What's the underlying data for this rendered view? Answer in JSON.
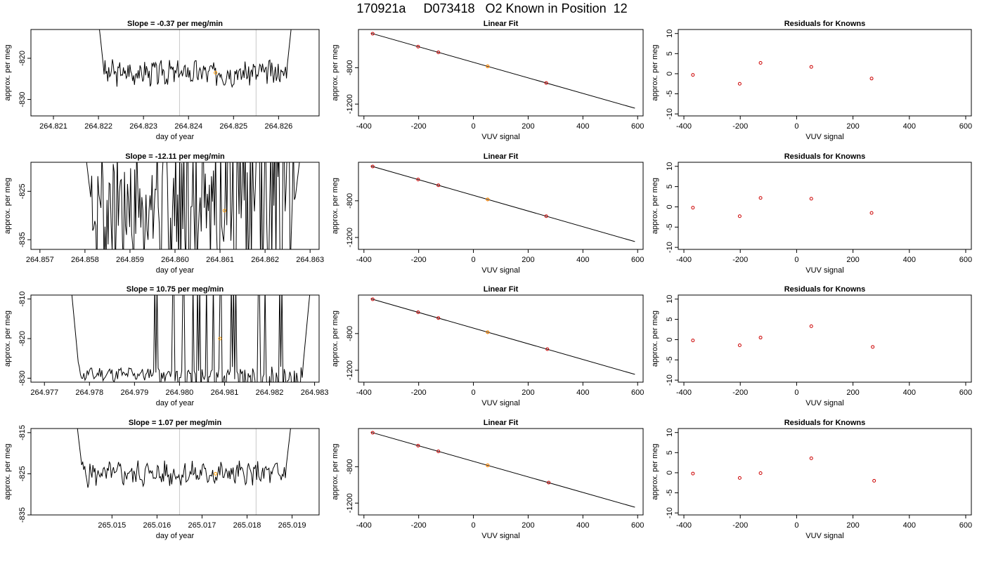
{
  "figure": {
    "title": "170921a     D073418   O2 Known in Position  12"
  },
  "colors": {
    "line": "#000000",
    "known_point": "#cc0000",
    "sample_point": "#ff9900",
    "marker_line": "#c8c8c8"
  },
  "chart_data": [
    {
      "type": "line",
      "title": "Slope =  -0.37  per meg/min",
      "xlabel": "day of year",
      "ylabel": "approx. per meg",
      "xlim": [
        264.8205,
        264.8269
      ],
      "ylim": [
        -834,
        -813
      ],
      "xticks": [
        "264.821",
        "264.822",
        "264.823",
        "264.824",
        "264.825",
        "264.826"
      ],
      "yticks": [
        "-820",
        "-830"
      ],
      "vlines": [
        264.8238,
        264.8255
      ],
      "trace": {
        "x_start": 264.8219,
        "x_end": 264.8264,
        "base": -823.5,
        "amp": 2.5,
        "seed": 3,
        "spikes": false
      },
      "point": {
        "x": 264.8246,
        "y": -823.5
      }
    },
    {
      "type": "scatter",
      "title": "Linear Fit",
      "xlabel": "VUV signal",
      "ylabel": "approx. per meg",
      "xlim": [
        -420,
        620
      ],
      "ylim": [
        -1330,
        -380
      ],
      "xticks": [
        "-400",
        "-200",
        "0",
        "200",
        "400",
        "600"
      ],
      "yticks": [
        "-800",
        "-1200"
      ],
      "line": {
        "x": [
          -375,
          590
        ],
        "y": [
          -420,
          -1245
        ]
      },
      "points": {
        "x": [
          -368,
          -202,
          -128,
          52,
          266
        ],
        "y": [
          -426,
          -568,
          -631,
          -785,
          -968
        ]
      },
      "sample": {
        "x": 52,
        "y": -785
      }
    },
    {
      "type": "scatter",
      "title": "Residuals for Knowns",
      "xlabel": "VUV signal",
      "ylabel": "approx. per meg",
      "xlim": [
        -420,
        620
      ],
      "ylim": [
        -10.5,
        11
      ],
      "xticks": [
        "-400",
        "-200",
        "0",
        "200",
        "400",
        "600"
      ],
      "yticks": [
        "10",
        "5",
        "0",
        "-5",
        "-10"
      ],
      "points": {
        "x": [
          -368,
          -202,
          -128,
          52,
          266
        ],
        "y": [
          -0.3,
          -2.5,
          2.7,
          1.7,
          -1.2
        ]
      }
    },
    {
      "type": "line",
      "title": "Slope =  -12.11  per meg/min",
      "xlabel": "day of year",
      "ylabel": "approx. per meg",
      "xlim": [
        264.8568,
        264.8632
      ],
      "ylim": [
        -837,
        -819
      ],
      "xticks": [
        "264.857",
        "264.858",
        "264.859",
        "264.860",
        "264.861",
        "264.862",
        "264.863"
      ],
      "yticks": [
        "-825",
        "-835"
      ],
      "vlines": [],
      "trace": {
        "x_start": 264.8579,
        "x_end": 264.8629,
        "base": -828,
        "amp": 12,
        "seed": 7,
        "spikes": true
      },
      "point": {
        "x": 264.8611,
        "y": -829
      }
    },
    {
      "type": "scatter",
      "title": "Linear Fit",
      "xlabel": "VUV signal",
      "ylabel": "approx. per meg",
      "xlim": [
        -420,
        620
      ],
      "ylim": [
        -1330,
        -380
      ],
      "xticks": [
        "-400",
        "-200",
        "0",
        "200",
        "400",
        "600"
      ],
      "yticks": [
        "-800",
        "-1200"
      ],
      "line": {
        "x": [
          -375,
          590
        ],
        "y": [
          -420,
          -1245
        ]
      },
      "points": {
        "x": [
          -368,
          -202,
          -128,
          52,
          266
        ],
        "y": [
          -426,
          -568,
          -631,
          -785,
          -968
        ]
      },
      "sample": {
        "x": 52,
        "y": -785
      }
    },
    {
      "type": "scatter",
      "title": "Residuals for Knowns",
      "xlabel": "VUV signal",
      "ylabel": "approx. per meg",
      "xlim": [
        -420,
        620
      ],
      "ylim": [
        -10.5,
        11
      ],
      "xticks": [
        "-400",
        "-200",
        "0",
        "200",
        "400",
        "600"
      ],
      "yticks": [
        "10",
        "5",
        "0",
        "-5",
        "-10"
      ],
      "points": {
        "x": [
          -368,
          -202,
          -128,
          52,
          266
        ],
        "y": [
          -0.2,
          -2.3,
          2.2,
          2.0,
          -1.5
        ]
      }
    },
    {
      "type": "line",
      "title": "Slope =  10.75  per meg/min",
      "xlabel": "day of year",
      "ylabel": "approx. per meg",
      "xlim": [
        264.9767,
        264.9831
      ],
      "ylim": [
        -831,
        -809
      ],
      "xticks": [
        "264.977",
        "264.978",
        "264.979",
        "264.980",
        "264.981",
        "264.982",
        "264.983"
      ],
      "yticks": [
        "-810",
        "-820",
        "-830"
      ],
      "vlines": [],
      "trace": {
        "x_start": 264.9775,
        "x_end": 264.983,
        "base": -829,
        "amp": 1.5,
        "seed": 11,
        "spikes": true
      },
      "point": {
        "x": 264.9809,
        "y": -820
      }
    },
    {
      "type": "scatter",
      "title": "Linear Fit",
      "xlabel": "VUV signal",
      "ylabel": "approx. per meg",
      "xlim": [
        -420,
        620
      ],
      "ylim": [
        -1330,
        -380
      ],
      "xticks": [
        "-400",
        "-200",
        "0",
        "200",
        "400",
        "600"
      ],
      "yticks": [
        "-800",
        "-1200"
      ],
      "line": {
        "x": [
          -375,
          590
        ],
        "y": [
          -420,
          -1245
        ]
      },
      "points": {
        "x": [
          -368,
          -202,
          -128,
          52,
          270
        ],
        "y": [
          -426,
          -568,
          -631,
          -785,
          -970
        ]
      },
      "sample": {
        "x": 52,
        "y": -785
      }
    },
    {
      "type": "scatter",
      "title": "Residuals for Knowns",
      "xlabel": "VUV signal",
      "ylabel": "approx. per meg",
      "xlim": [
        -420,
        620
      ],
      "ylim": [
        -10.5,
        11
      ],
      "xticks": [
        "-400",
        "-200",
        "0",
        "200",
        "400",
        "600"
      ],
      "yticks": [
        "10",
        "5",
        "0",
        "-5",
        "-10"
      ],
      "points": {
        "x": [
          -368,
          -202,
          -128,
          52,
          270
        ],
        "y": [
          -0.2,
          -1.4,
          0.5,
          3.3,
          -1.8
        ]
      }
    },
    {
      "type": "line",
      "title": "Slope =  1.07  per meg/min",
      "xlabel": "day of year",
      "ylabel": "approx. per meg",
      "xlim": [
        265.0132,
        265.0196
      ],
      "ylim": [
        -835,
        -814
      ],
      "xticks": [
        "265.015",
        "265.016",
        "265.017",
        "265.018",
        "265.019"
      ],
      "yticks": [
        "-815",
        "-825",
        "-835"
      ],
      "vlines": [
        265.0165,
        265.0182
      ],
      "trace": {
        "x_start": 265.0141,
        "x_end": 265.0191,
        "base": -825,
        "amp": 2.5,
        "seed": 5,
        "spikes": false
      },
      "point": {
        "x": 265.0173,
        "y": -825
      }
    },
    {
      "type": "scatter",
      "title": "Linear Fit",
      "xlabel": "VUV signal",
      "ylabel": "approx. per meg",
      "xlim": [
        -420,
        620
      ],
      "ylim": [
        -1330,
        -380
      ],
      "xticks": [
        "-400",
        "-200",
        "0",
        "200",
        "400",
        "600"
      ],
      "yticks": [
        "-800",
        "-1200"
      ],
      "line": {
        "x": [
          -375,
          590
        ],
        "y": [
          -420,
          -1245
        ]
      },
      "points": {
        "x": [
          -368,
          -202,
          -128,
          52,
          275
        ],
        "y": [
          -426,
          -568,
          -631,
          -785,
          -975
        ]
      },
      "sample": {
        "x": 52,
        "y": -785
      }
    },
    {
      "type": "scatter",
      "title": "Residuals for Knowns",
      "xlabel": "VUV signal",
      "ylabel": "approx. per meg",
      "xlim": [
        -420,
        620
      ],
      "ylim": [
        -10.5,
        11
      ],
      "xticks": [
        "-400",
        "-200",
        "0",
        "200",
        "400",
        "600"
      ],
      "yticks": [
        "10",
        "5",
        "0",
        "-5",
        "-10"
      ],
      "points": {
        "x": [
          -368,
          -202,
          -128,
          52,
          275
        ],
        "y": [
          -0.2,
          -1.3,
          -0.1,
          3.6,
          -2.0
        ]
      }
    }
  ]
}
